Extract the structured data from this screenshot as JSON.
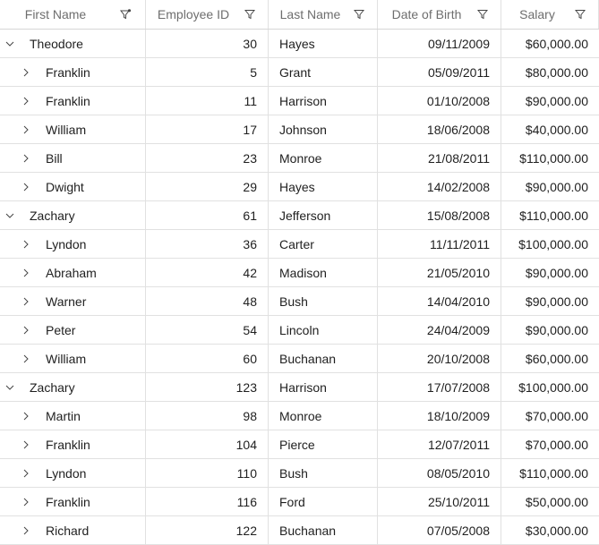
{
  "columns": [
    {
      "label": "First Name",
      "filter_icon": "filter-active-icon"
    },
    {
      "label": "Employee ID",
      "filter_icon": "filter-icon"
    },
    {
      "label": "Last Name",
      "filter_icon": "filter-icon"
    },
    {
      "label": "Date of Birth",
      "filter_icon": "filter-icon"
    },
    {
      "label": "Salary",
      "filter_icon": "filter-icon"
    }
  ],
  "rows": [
    {
      "level": 0,
      "expanded": true,
      "first": "Theodore",
      "id": "30",
      "last": "Hayes",
      "dob": "09/11/2009",
      "salary": "$60,000.00"
    },
    {
      "level": 1,
      "expanded": false,
      "first": "Franklin",
      "id": "5",
      "last": "Grant",
      "dob": "05/09/2011",
      "salary": "$80,000.00"
    },
    {
      "level": 1,
      "expanded": false,
      "first": "Franklin",
      "id": "11",
      "last": "Harrison",
      "dob": "01/10/2008",
      "salary": "$90,000.00"
    },
    {
      "level": 1,
      "expanded": false,
      "first": "William",
      "id": "17",
      "last": "Johnson",
      "dob": "18/06/2008",
      "salary": "$40,000.00"
    },
    {
      "level": 1,
      "expanded": false,
      "first": "Bill",
      "id": "23",
      "last": "Monroe",
      "dob": "21/08/2011",
      "salary": "$110,000.00"
    },
    {
      "level": 1,
      "expanded": false,
      "first": "Dwight",
      "id": "29",
      "last": "Hayes",
      "dob": "14/02/2008",
      "salary": "$90,000.00"
    },
    {
      "level": 0,
      "expanded": true,
      "first": "Zachary",
      "id": "61",
      "last": "Jefferson",
      "dob": "15/08/2008",
      "salary": "$110,000.00"
    },
    {
      "level": 1,
      "expanded": false,
      "first": "Lyndon",
      "id": "36",
      "last": "Carter",
      "dob": "11/11/2011",
      "salary": "$100,000.00"
    },
    {
      "level": 1,
      "expanded": false,
      "first": "Abraham",
      "id": "42",
      "last": "Madison",
      "dob": "21/05/2010",
      "salary": "$90,000.00"
    },
    {
      "level": 1,
      "expanded": false,
      "first": "Warner",
      "id": "48",
      "last": "Bush",
      "dob": "14/04/2010",
      "salary": "$90,000.00"
    },
    {
      "level": 1,
      "expanded": false,
      "first": "Peter",
      "id": "54",
      "last": "Lincoln",
      "dob": "24/04/2009",
      "salary": "$90,000.00"
    },
    {
      "level": 1,
      "expanded": false,
      "first": "William",
      "id": "60",
      "last": "Buchanan",
      "dob": "20/10/2008",
      "salary": "$60,000.00"
    },
    {
      "level": 0,
      "expanded": true,
      "first": "Zachary",
      "id": "123",
      "last": "Harrison",
      "dob": "17/07/2008",
      "salary": "$100,000.00"
    },
    {
      "level": 1,
      "expanded": false,
      "first": "Martin",
      "id": "98",
      "last": "Monroe",
      "dob": "18/10/2009",
      "salary": "$70,000.00"
    },
    {
      "level": 1,
      "expanded": false,
      "first": "Franklin",
      "id": "104",
      "last": "Pierce",
      "dob": "12/07/2011",
      "salary": "$70,000.00"
    },
    {
      "level": 1,
      "expanded": false,
      "first": "Lyndon",
      "id": "110",
      "last": "Bush",
      "dob": "08/05/2010",
      "salary": "$110,000.00"
    },
    {
      "level": 1,
      "expanded": false,
      "first": "Franklin",
      "id": "116",
      "last": "Ford",
      "dob": "25/10/2011",
      "salary": "$50,000.00"
    },
    {
      "level": 1,
      "expanded": false,
      "first": "Richard",
      "id": "122",
      "last": "Buchanan",
      "dob": "07/05/2008",
      "salary": "$30,000.00"
    }
  ],
  "colors": {
    "text": "#1f1f1f",
    "header_text": "#6e6e6e",
    "grid_line": "#e1e1e1",
    "icon": "#444444"
  }
}
